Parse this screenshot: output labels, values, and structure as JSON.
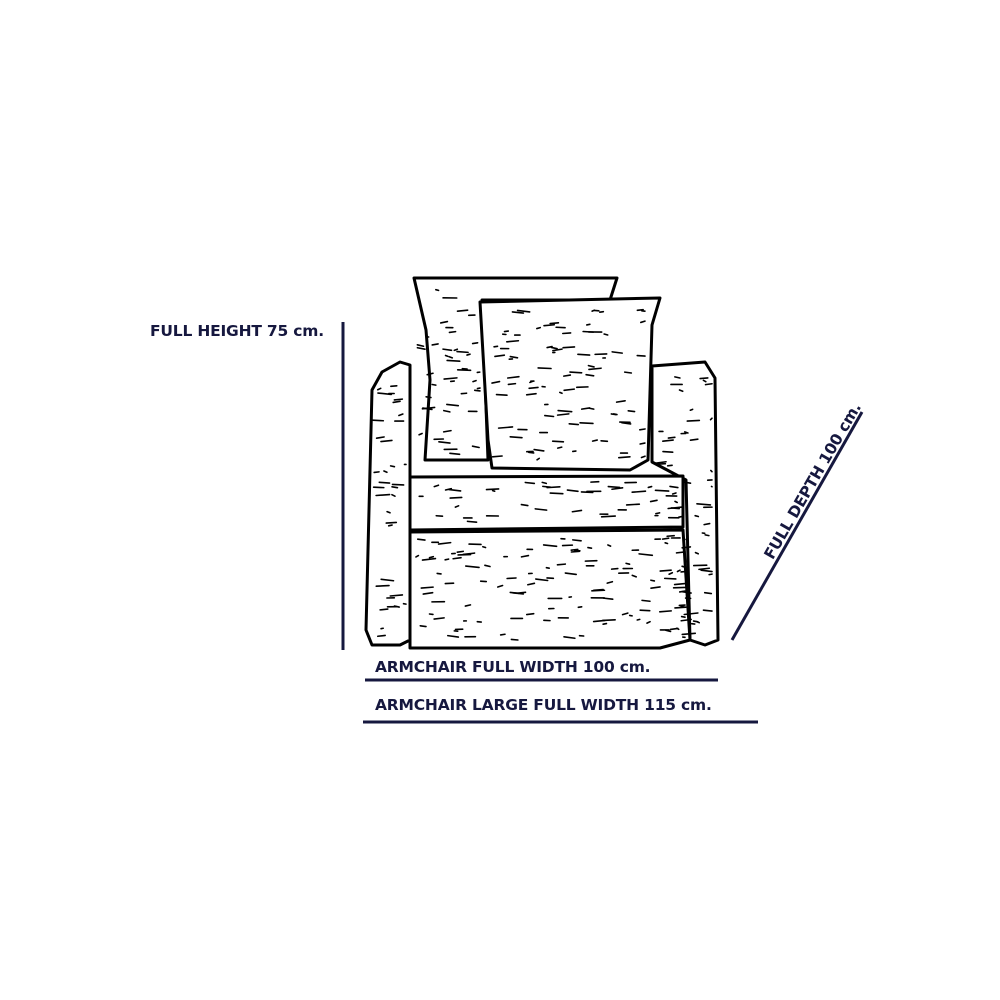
{
  "colors": {
    "dimension": "#16183f",
    "drawing": "#000000"
  },
  "labels": {
    "full_height": "FULL HEIGHT 75 cm.",
    "full_width": "ARMCHAIR FULL WIDTH 100 cm.",
    "large_full_width": "ARMCHAIR LARGE FULL WIDTH 115 cm.",
    "full_depth": "FULL DEPTH 100 cm."
  }
}
